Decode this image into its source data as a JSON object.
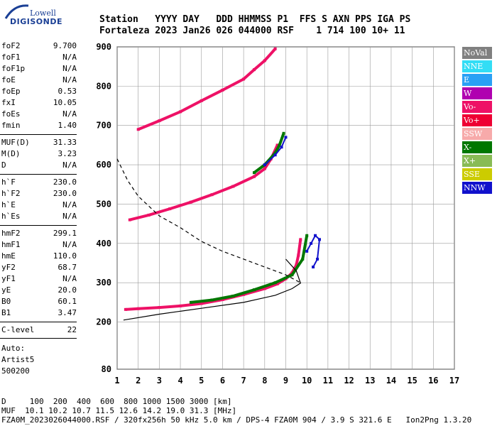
{
  "logo": {
    "company": "Lowell",
    "product": "DIGISONDE"
  },
  "header": {
    "line1": "Station   YYYY DAY   DDD HHMMSS P1  FFS S AXN PPS IGA PS",
    "line2": "Fortaleza 2023 Jan26 026 044000 RSF    1 714 100 10+ 11"
  },
  "params": {
    "group1": [
      {
        "label": "foF2",
        "value": "9.700"
      },
      {
        "label": "foF1",
        "value": "N/A"
      },
      {
        "label": "foF1p",
        "value": "N/A"
      },
      {
        "label": "foE",
        "value": "N/A"
      },
      {
        "label": "foEp",
        "value": "0.53"
      },
      {
        "label": "fxI",
        "value": "10.05"
      },
      {
        "label": "foEs",
        "value": "N/A"
      },
      {
        "label": "fmin",
        "value": "1.40"
      }
    ],
    "group2": [
      {
        "label": "MUF(D)",
        "value": "31.33"
      },
      {
        "label": "M(D)",
        "value": "3.23"
      },
      {
        "label": "D",
        "value": "N/A"
      }
    ],
    "group3": [
      {
        "label": "h`F",
        "value": "230.0"
      },
      {
        "label": "h`F2",
        "value": "230.0"
      },
      {
        "label": "h`E",
        "value": "N/A"
      },
      {
        "label": "h`Es",
        "value": "N/A"
      }
    ],
    "group4": [
      {
        "label": "hmF2",
        "value": "299.1"
      },
      {
        "label": "hmF1",
        "value": "N/A"
      },
      {
        "label": "hmE",
        "value": "110.0"
      },
      {
        "label": "yF2",
        "value": "68.7"
      },
      {
        "label": "yF1",
        "value": "N/A"
      },
      {
        "label": "yE",
        "value": "20.0"
      },
      {
        "label": "B0",
        "value": "60.1"
      },
      {
        "label": "B1",
        "value": "3.47"
      }
    ],
    "clevel": {
      "label": "C-level",
      "value": "22"
    },
    "auto": [
      "Auto:",
      "Artist5",
      "500200"
    ]
  },
  "legend": [
    {
      "label": "NoVal",
      "color": "#808080"
    },
    {
      "label": "NNE",
      "color": "#33ddf5"
    },
    {
      "label": "E",
      "color": "#2aa0f5"
    },
    {
      "label": "W",
      "color": "#b000b0"
    },
    {
      "label": "Vo-",
      "color": "#ee1166"
    },
    {
      "label": "Vo+",
      "color": "#ee0033"
    },
    {
      "label": "SSW",
      "color": "#f7aaaa"
    },
    {
      "label": "X-",
      "color": "#007700"
    },
    {
      "label": "X+",
      "color": "#88bb55"
    },
    {
      "label": "SSE",
      "color": "#cccc00"
    },
    {
      "label": "NNW",
      "color": "#1111cc"
    }
  ],
  "chart_data": {
    "type": "scatter",
    "title": "",
    "xlabel": "",
    "ylabel": "",
    "xlim": [
      1,
      17
    ],
    "ylim": [
      80,
      900
    ],
    "x_ticks": [
      "1",
      "2",
      "3",
      "4",
      "5",
      "6",
      "7",
      "8",
      "9",
      "10",
      "11",
      "12",
      "13",
      "14",
      "15",
      "16",
      "17"
    ],
    "y_ticks": [
      "80",
      "200",
      "300",
      "400",
      "500",
      "600",
      "700",
      "800",
      "900"
    ],
    "grid": true,
    "series": [
      {
        "name": "Vo-",
        "traces": [
          {
            "x": [
              1.4,
              2.0,
              3.0,
              4.0,
              5.0,
              6.0,
              7.0,
              8.0,
              8.6,
              9.0,
              9.3,
              9.5,
              9.6,
              9.7
            ],
            "y": [
              232,
              234,
              237,
              241,
              247,
              257,
              270,
              285,
              297,
              310,
              325,
              345,
              370,
              410
            ]
          },
          {
            "x": [
              1.6,
              2.5,
              3.5,
              4.5,
              5.5,
              6.5,
              7.5,
              8.0,
              8.3,
              8.6
            ],
            "y": [
              460,
              472,
              488,
              505,
              524,
              545,
              570,
              590,
              615,
              650
            ]
          },
          {
            "x": [
              2.0,
              3.0,
              4.0,
              5.0,
              6.0,
              7.0,
              7.5,
              8.0,
              8.5
            ],
            "y": [
              690,
              712,
              735,
              763,
              790,
              818,
              842,
              865,
              895
            ]
          }
        ]
      },
      {
        "name": "X-",
        "traces": [
          {
            "x": [
              4.5,
              5.5,
              6.5,
              7.5,
              8.5,
              9.3,
              9.8,
              10.0
            ],
            "y": [
              250,
              256,
              266,
              282,
              300,
              320,
              360,
              420
            ]
          },
          {
            "x": [
              7.5,
              8.0,
              8.5,
              8.7,
              8.9
            ],
            "y": [
              580,
              600,
              630,
              650,
              680
            ]
          }
        ]
      },
      {
        "name": "NNW",
        "traces": [
          {
            "x": [
              10.0,
              10.2,
              10.4,
              10.6,
              10.5,
              10.3
            ],
            "y": [
              380,
              400,
              420,
              410,
              360,
              340
            ]
          },
          {
            "x": [
              8.0,
              8.5,
              8.8,
              9.0
            ],
            "y": [
              600,
              625,
              645,
              670
            ]
          }
        ]
      },
      {
        "name": "profile",
        "traces": [
          {
            "x": [
              1.3,
              3.0,
              5.0,
              7.0,
              8.5,
              9.3,
              9.7,
              9.5,
              9.0
            ],
            "y": [
              205,
              220,
              235,
              250,
              268,
              285,
              299,
              330,
              360
            ]
          },
          {
            "x": [
              1.0,
              1.5,
              2.0,
              3.0,
              4.0,
              5.0,
              6.0,
              7.0,
              8.0,
              9.0,
              9.7
            ],
            "y": [
              615,
              560,
              520,
              470,
              440,
              405,
              380,
              360,
              340,
              320,
              300
            ]
          }
        ]
      }
    ]
  },
  "footer": {
    "line1": "D     100  200  400  600  800 1000 1500 3000 [km]",
    "line2": "MUF  10.1 10.2 10.7 11.5 12.6 14.2 19.0 31.3 [MHz]",
    "line3": "FZA0M_2023026044000.RSF / 320fx256h 50 kHz 5.0 km / DPS-4 FZA0M 904 / 3.9 S 321.6 E   Ion2Png 1.3.20"
  }
}
